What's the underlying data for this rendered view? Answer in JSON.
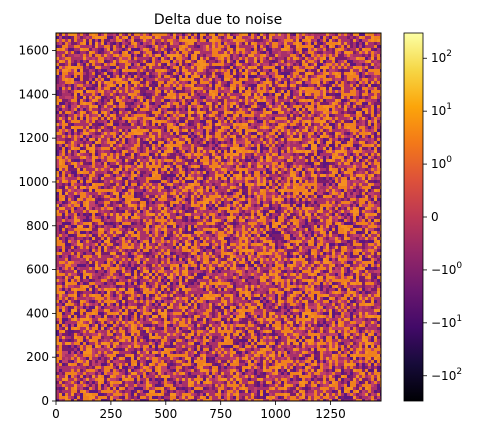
{
  "chart_data": {
    "type": "heatmap",
    "title": "Delta due to noise",
    "xlabel": "",
    "ylabel": "",
    "xlim": [
      0,
      1480
    ],
    "ylim": [
      0,
      1680
    ],
    "x_ticks": [
      0,
      250,
      500,
      750,
      1000,
      1250
    ],
    "y_ticks": [
      0,
      200,
      400,
      600,
      800,
      1000,
      1200,
      1400,
      1600
    ],
    "colormap": "inferno",
    "color_scale": "symlog",
    "colorbar_range": [
      -300,
      300
    ],
    "colorbar": {
      "ticks": [
        {
          "value": 100,
          "label_base": "10",
          "label_sign": "",
          "label_exp": "2"
        },
        {
          "value": 10,
          "label_base": "10",
          "label_sign": "",
          "label_exp": "1"
        },
        {
          "value": 1,
          "label_base": "10",
          "label_sign": "",
          "label_exp": "0"
        },
        {
          "value": 0,
          "label_base": "0",
          "label_sign": "",
          "label_exp": ""
        },
        {
          "value": -1,
          "label_base": "10",
          "label_sign": "−",
          "label_exp": "0"
        },
        {
          "value": -10,
          "label_base": "10",
          "label_sign": "−",
          "label_exp": "1"
        },
        {
          "value": -100,
          "label_base": "10",
          "label_sign": "−",
          "label_exp": "2"
        }
      ]
    },
    "description_values": "dense random noise of small positive and negative deltas, mostly between -1 and 1",
    "dominant_colors": {
      "positive": "#f0801e",
      "near_zero": "#c0406a",
      "negative": "#5c1680"
    }
  }
}
